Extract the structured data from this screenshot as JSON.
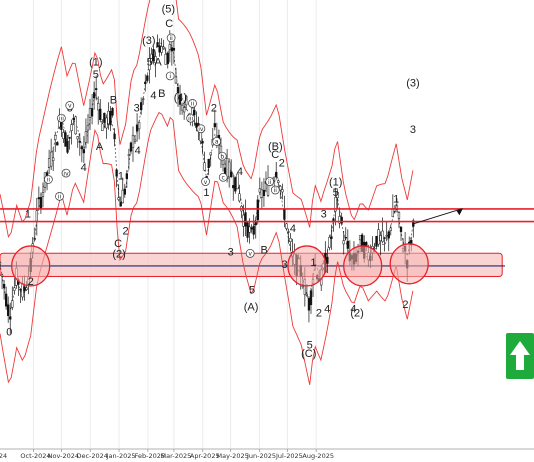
{
  "chart_data": {
    "type": "candlestick",
    "x_ticks": [
      "Oct-2024",
      "Nov-2024",
      "Dec-2024",
      "Jan-2025",
      "Feb-2025",
      "Mar-2025",
      "Apr-2025",
      "May-2025",
      "Jun-2025",
      "Jul-2025",
      "Aug-2025"
    ],
    "x_tick_partial": "24",
    "resistance_lines": [
      6.3,
      6.0
    ],
    "support_zone": [
      4.7,
      5.25
    ],
    "support_line": 4.95,
    "colors": {
      "line": "#e8212b",
      "zone_fill": "#f9c9c8",
      "support_line": "#1f2a6b",
      "bollinger": "#ee3a3a",
      "ma": "#444444",
      "arrow_box": "#1fab3b"
    },
    "arrow_icon": "up-arrow-icon",
    "labels": [
      {
        "t": "0",
        "d": 10,
        "p": 3.3
      },
      {
        "t": "2",
        "d": 33,
        "p": 4.5
      },
      {
        "t": "1",
        "d": 30,
        "p": 6.1
      },
      {
        "t": "3",
        "d": 75,
        "p": 8.6
      },
      {
        "t": "4",
        "d": 90,
        "p": 7.2
      },
      {
        "t": "5",
        "d": 103,
        "p": 9.4
      },
      {
        "t": "(1)",
        "d": 103,
        "p": 9.7
      },
      {
        "t": "B",
        "d": 122,
        "p": 8.8
      },
      {
        "t": "A",
        "d": 107,
        "p": 7.7
      },
      {
        "t": "1",
        "d": 130,
        "p": 7.0
      },
      {
        "t": "2",
        "d": 135,
        "p": 5.7
      },
      {
        "t": "C",
        "d": 127,
        "p": 5.4
      },
      {
        "t": "(2)",
        "d": 128,
        "p": 5.15
      },
      {
        "t": "3",
        "d": 147,
        "p": 8.6
      },
      {
        "t": "4",
        "d": 148,
        "p": 7.6
      },
      {
        "t": "5",
        "d": 161,
        "p": 9.7
      },
      {
        "t": "(3)",
        "d": 160,
        "p": 10.2
      },
      {
        "t": "A",
        "d": 170,
        "p": 9.7
      },
      {
        "t": "4",
        "d": 165,
        "p": 8.9
      },
      {
        "t": "B",
        "d": 174,
        "p": 8.95
      },
      {
        "t": "C",
        "d": 182,
        "p": 10.6
      },
      {
        "t": "(5)",
        "d": 181,
        "p": 10.95
      },
      {
        "t": "(4)",
        "d": 194,
        "p": 8.85
      },
      {
        "t": "2",
        "d": 230,
        "p": 8.6
      },
      {
        "t": "1",
        "d": 222,
        "p": 6.6
      },
      {
        "t": "4",
        "d": 258,
        "p": 7.1
      },
      {
        "t": "3",
        "d": 248,
        "p": 5.2
      },
      {
        "t": "B",
        "d": 284,
        "p": 5.25
      },
      {
        "t": "5",
        "d": 271,
        "p": 4.3
      },
      {
        "t": "(A)",
        "d": 270,
        "p": 3.9
      },
      {
        "t": "(B)",
        "d": 296,
        "p": 7.7
      },
      {
        "t": "C",
        "d": 296,
        "p": 7.5
      },
      {
        "t": "2",
        "d": 303,
        "p": 7.3
      },
      {
        "t": "4",
        "d": 315,
        "p": 5.75
      },
      {
        "t": "3",
        "d": 306,
        "p": 4.9
      },
      {
        "t": "1",
        "d": 337,
        "p": 4.95
      },
      {
        "t": "2",
        "d": 343,
        "p": 3.75
      },
      {
        "t": "4",
        "d": 352,
        "p": 3.85
      },
      {
        "t": "5",
        "d": 333,
        "p": 3.0
      },
      {
        "t": "(C)",
        "d": 332,
        "p": 2.8
      },
      {
        "t": "3",
        "d": 348,
        "p": 6.1
      },
      {
        "t": "(1)",
        "d": 361,
        "p": 6.85
      },
      {
        "t": "5",
        "d": 361,
        "p": 6.6
      },
      {
        "t": "4",
        "d": 380,
        "p": 3.85
      },
      {
        "t": "(2)",
        "d": 384,
        "p": 3.75
      },
      {
        "t": "1",
        "d": 426,
        "p": 6.45
      },
      {
        "t": "2",
        "d": 436,
        "p": 3.95
      },
      {
        "t": "(3)",
        "d": 444,
        "p": 9.2
      },
      {
        "t": "3",
        "d": 444,
        "p": 8.1
      }
    ],
    "circle_labels": [
      {
        "t": "iii",
        "d": 66,
        "p": 8.4
      },
      {
        "t": "iv",
        "d": 71,
        "p": 7.1
      },
      {
        "t": "ii",
        "d": 52,
        "p": 6.95
      },
      {
        "t": "ii",
        "d": 64,
        "p": 6.55
      },
      {
        "t": "v",
        "d": 75,
        "p": 8.7
      },
      {
        "t": "ii",
        "d": 184,
        "p": 10.3
      },
      {
        "t": "i",
        "d": 183,
        "p": 9.4
      },
      {
        "t": "ii",
        "d": 207,
        "p": 8.75
      },
      {
        "t": "iii",
        "d": 205,
        "p": 8.4
      },
      {
        "t": "iv",
        "d": 216,
        "p": 8.15
      },
      {
        "t": "a",
        "d": 233,
        "p": 7.85
      },
      {
        "t": "b",
        "d": 239,
        "p": 7.5
      },
      {
        "t": "c",
        "d": 240,
        "p": 7.0
      },
      {
        "t": "v",
        "d": 221,
        "p": 6.9
      },
      {
        "t": "v",
        "d": 269,
        "p": 5.2
      },
      {
        "t": "ii",
        "d": 290,
        "p": 6.9
      },
      {
        "t": "ii",
        "d": 296,
        "p": 6.7
      }
    ]
  }
}
